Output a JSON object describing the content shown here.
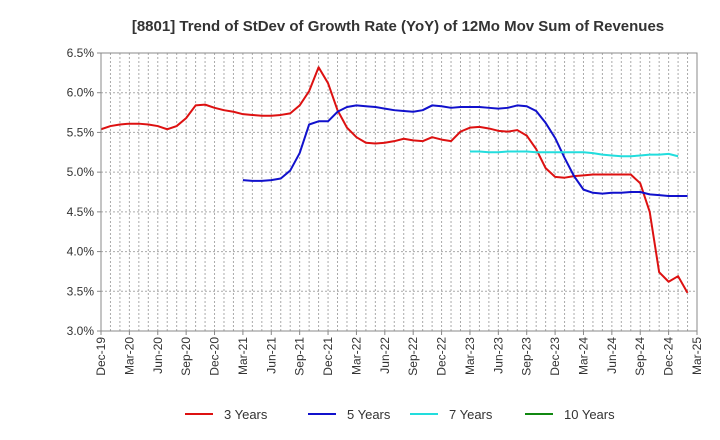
{
  "chart_data": {
    "type": "line",
    "title": "[8801]  Trend of StDev of Growth Rate (YoY) of 12Mo Mov Sum of Revenues",
    "xlabel": "",
    "ylabel": "",
    "ylim": [
      3.0,
      6.5
    ],
    "y_ticks": [
      "3.0%",
      "3.5%",
      "4.0%",
      "4.5%",
      "5.0%",
      "5.5%",
      "6.0%",
      "6.5%"
    ],
    "x_tick_labels": [
      "Dec-19",
      "Mar-20",
      "Jun-20",
      "Sep-20",
      "Dec-20",
      "Mar-21",
      "Jun-21",
      "Sep-21",
      "Dec-21",
      "Mar-22",
      "Jun-22",
      "Sep-22",
      "Dec-22",
      "Mar-23",
      "Jun-23",
      "Sep-23",
      "Dec-23",
      "Mar-24",
      "Jun-24",
      "Sep-24",
      "Dec-24",
      "Mar-25"
    ],
    "x_range_months": [
      0,
      63
    ],
    "grid": true,
    "legend_position": "bottom",
    "series": [
      {
        "name": "3 Years",
        "color": "#dd1111",
        "start_month": 0,
        "values": [
          5.54,
          5.58,
          5.6,
          5.61,
          5.61,
          5.6,
          5.58,
          5.54,
          5.58,
          5.68,
          5.84,
          5.85,
          5.81,
          5.78,
          5.76,
          5.73,
          5.72,
          5.71,
          5.71,
          5.72,
          5.74,
          5.84,
          6.02,
          6.32,
          6.12,
          5.78,
          5.56,
          5.44,
          5.37,
          5.36,
          5.37,
          5.39,
          5.42,
          5.4,
          5.39,
          5.44,
          5.41,
          5.39,
          5.51,
          5.56,
          5.57,
          5.55,
          5.52,
          5.51,
          5.53,
          5.46,
          5.29,
          5.05,
          4.94,
          4.93,
          4.95,
          4.96,
          4.97,
          4.97,
          4.97,
          4.97,
          4.97,
          4.86,
          4.5,
          3.74,
          3.62,
          3.69,
          3.48
        ]
      },
      {
        "name": "5 Years",
        "color": "#1111cc",
        "start_month": 15,
        "values": [
          4.9,
          4.89,
          4.89,
          4.9,
          4.92,
          5.02,
          5.24,
          5.6,
          5.64,
          5.64,
          5.76,
          5.82,
          5.84,
          5.83,
          5.82,
          5.8,
          5.78,
          5.77,
          5.76,
          5.78,
          5.84,
          5.83,
          5.81,
          5.82,
          5.82,
          5.82,
          5.81,
          5.8,
          5.81,
          5.84,
          5.83,
          5.77,
          5.62,
          5.43,
          5.18,
          4.95,
          4.78,
          4.74,
          4.73,
          4.74,
          4.74,
          4.75,
          4.75,
          4.72,
          4.71,
          4.7,
          4.7,
          4.7
        ]
      },
      {
        "name": "7 Years",
        "color": "#22dddd",
        "start_month": 39,
        "values": [
          5.26,
          5.26,
          5.25,
          5.25,
          5.26,
          5.26,
          5.26,
          5.25,
          5.25,
          5.25,
          5.25,
          5.25,
          5.25,
          5.24,
          5.22,
          5.21,
          5.2,
          5.2,
          5.21,
          5.22,
          5.22,
          5.23,
          5.2
        ]
      },
      {
        "name": "10 Years",
        "color": "#118811",
        "start_month": 0,
        "values": []
      }
    ]
  }
}
